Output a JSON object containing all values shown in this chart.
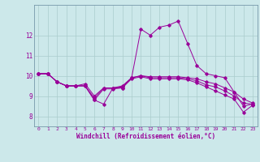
{
  "title": "",
  "xlabel": "Windchill (Refroidissement éolien,°C)",
  "ylabel": "",
  "bg_color": "#cce8ea",
  "grid_color": "#aacccc",
  "line_color": "#990099",
  "xlim": [
    -0.5,
    23.5
  ],
  "ylim": [
    7.5,
    13.5
  ],
  "yticks": [
    8,
    9,
    10,
    11,
    12
  ],
  "xticks": [
    0,
    1,
    2,
    3,
    4,
    5,
    6,
    7,
    8,
    9,
    10,
    11,
    12,
    13,
    14,
    15,
    16,
    17,
    18,
    19,
    20,
    21,
    22,
    23
  ],
  "series": [
    [
      10.1,
      10.1,
      9.7,
      9.5,
      9.5,
      9.5,
      8.8,
      8.6,
      9.4,
      9.4,
      9.9,
      12.3,
      12.0,
      12.4,
      12.5,
      12.7,
      11.6,
      10.5,
      10.1,
      10.0,
      9.9,
      9.2,
      8.5,
      8.6
    ],
    [
      10.1,
      10.1,
      9.7,
      9.5,
      9.5,
      9.6,
      9.0,
      9.4,
      9.4,
      9.5,
      9.9,
      10.0,
      9.95,
      9.95,
      9.95,
      9.95,
      9.9,
      9.85,
      9.7,
      9.6,
      9.4,
      9.2,
      8.85,
      8.65
    ],
    [
      10.1,
      10.1,
      9.7,
      9.5,
      9.5,
      9.5,
      8.9,
      9.4,
      9.4,
      9.45,
      9.9,
      10.0,
      9.9,
      9.9,
      9.9,
      9.9,
      9.85,
      9.75,
      9.55,
      9.45,
      9.25,
      9.0,
      8.65,
      8.6
    ],
    [
      10.1,
      10.1,
      9.7,
      9.5,
      9.5,
      9.5,
      8.8,
      9.35,
      9.35,
      9.4,
      9.85,
      9.95,
      9.85,
      9.85,
      9.85,
      9.85,
      9.8,
      9.65,
      9.45,
      9.25,
      9.05,
      8.85,
      8.2,
      8.55
    ]
  ]
}
